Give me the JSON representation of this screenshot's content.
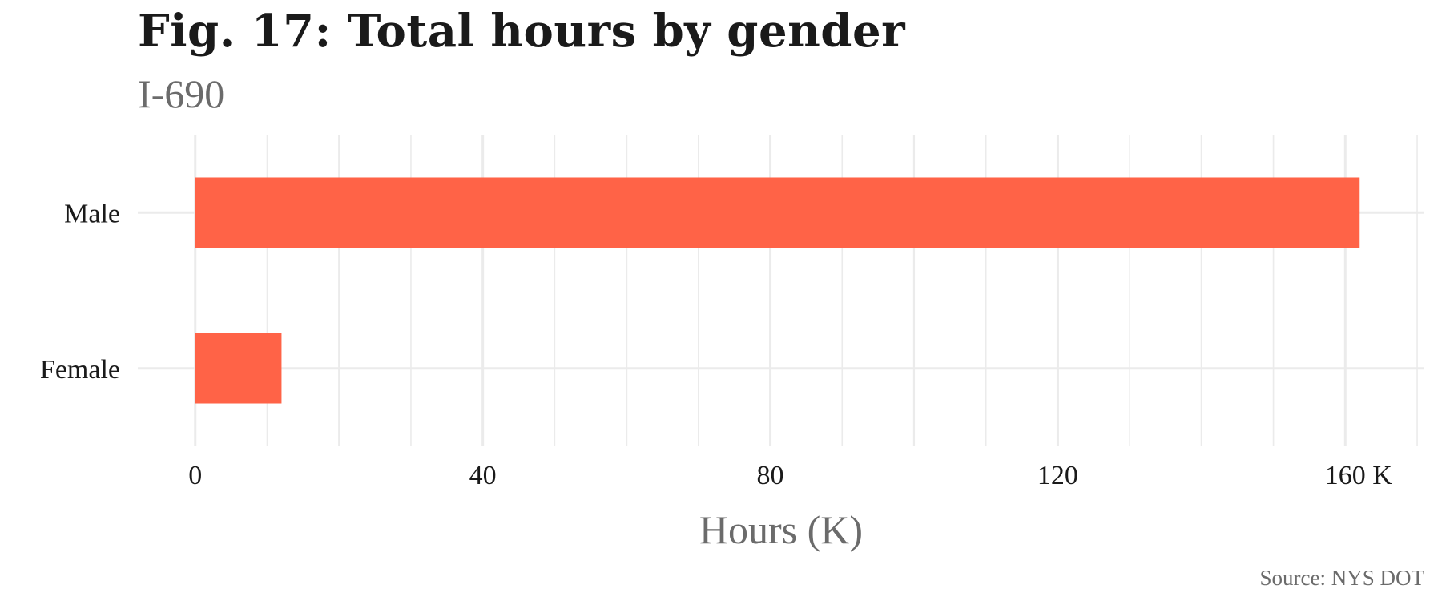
{
  "chart_data": {
    "type": "bar",
    "orientation": "horizontal",
    "title": "Fig. 17: Total hours by gender",
    "subtitle": "I-690",
    "xlabel": "Hours (K)",
    "ylabel": "",
    "categories": [
      "Male",
      "Female"
    ],
    "values": [
      162,
      12
    ],
    "xlim": [
      -8,
      171
    ],
    "xticks": [
      0,
      40,
      80,
      120,
      160
    ],
    "xtick_labels": [
      "0",
      "40",
      "80",
      "120",
      "160 K"
    ],
    "grid": true,
    "bar_color": "#FF6347",
    "grid_color": "#ebebeb",
    "caption": "Source: NYS DOT"
  }
}
